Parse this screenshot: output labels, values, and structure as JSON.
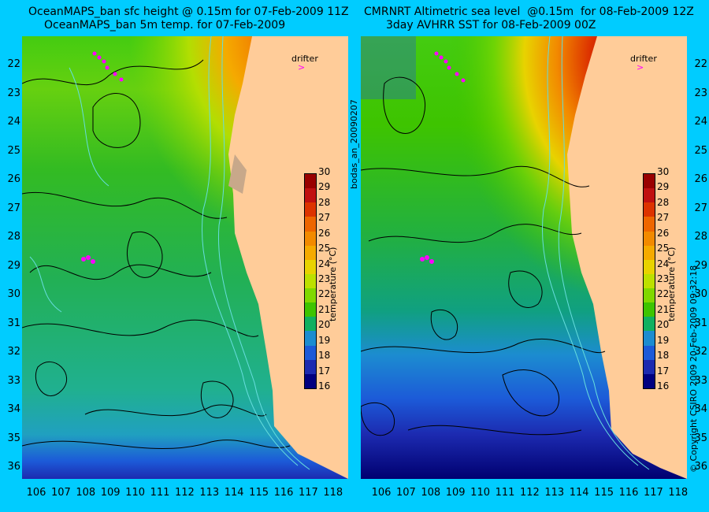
{
  "left_panel": {
    "title_line1": "OceanMAPS_ban sfc height @ 0.15m for 07-Feb-2009 11Z",
    "title_line2": "OceanMAPS_ban 5m temp. for 07-Feb-2009"
  },
  "right_panel": {
    "title_line1": "CMRNRT Altimetric sea level  @0.15m  for 08-Feb-2009 12Z",
    "title_line2": "3day AVHRR SST for 08-Feb-2009 00Z"
  },
  "y_ticks": [
    "22",
    "23",
    "24",
    "25",
    "26",
    "27",
    "28",
    "29",
    "30",
    "31",
    "32",
    "33",
    "34",
    "35",
    "36"
  ],
  "x_ticks": [
    "106",
    "107",
    "108",
    "109",
    "110",
    "111",
    "112",
    "113",
    "114",
    "115",
    "116",
    "117",
    "118"
  ],
  "colorbar": {
    "labels": [
      "30",
      "29",
      "28",
      "27",
      "26",
      "25",
      "24",
      "23",
      "22",
      "21",
      "20",
      "19",
      "18",
      "17",
      "16"
    ],
    "title": "temperature (°C)",
    "colors": [
      "#990000",
      "#c01010",
      "#dd3300",
      "#ee6600",
      "#f28a00",
      "#f5aa00",
      "#e8d300",
      "#bde000",
      "#80d800",
      "#3ec400",
      "#10b060",
      "#1c8cd0",
      "#1c5ad8",
      "#1c2ab0",
      "#000080"
    ]
  },
  "drifter_label": "drifter",
  "side_label": "bodas_an_20090207",
  "copyright": "© Copyright CSIRO 2009    20-Feb-2009 09:32:18",
  "colors": {
    "background": "#00ccff",
    "land": "#ffcc99",
    "drifter": "#ff00ff",
    "contour": "#000000",
    "isobath": "#66dddd"
  }
}
